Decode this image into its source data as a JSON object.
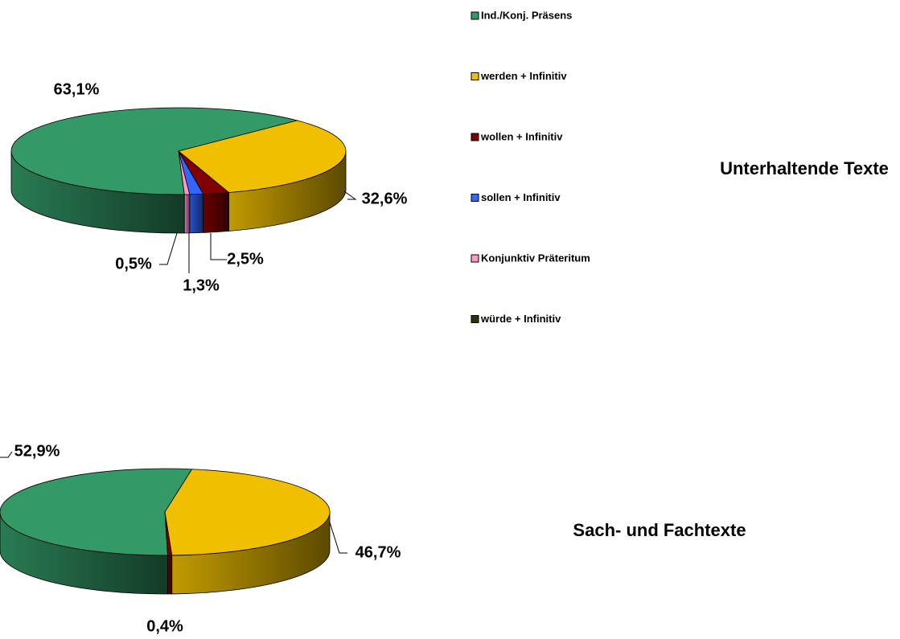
{
  "chart_data": [
    {
      "type": "pie",
      "title": "Unterhaltende Texte",
      "categories": [
        "Ind./Konj. Präsens",
        "werden + Infinitiv",
        "wollen + Infinitiv",
        "sollen + Infinitiv",
        "Konjunktiv Präteritum",
        "würde + Infinitiv"
      ],
      "colors": [
        "#339966",
        "#f0c000",
        "#800000",
        "#3366ff",
        "#ff99cc",
        "#333300"
      ],
      "values": [
        63.1,
        32.6,
        2.5,
        1.3,
        0.5,
        0
      ],
      "value_labels": [
        "63,1%",
        "32,6%",
        "2,5%",
        "1,3%",
        "0,5%",
        null
      ],
      "legend": "right"
    },
    {
      "type": "pie",
      "title": "Sach- und Fachtexte",
      "values": [
        52.9,
        46.7,
        0.4,
        0,
        0,
        0
      ],
      "value_labels": [
        "52,9%",
        "46,7%",
        "0,4%",
        null,
        null,
        null
      ]
    }
  ]
}
